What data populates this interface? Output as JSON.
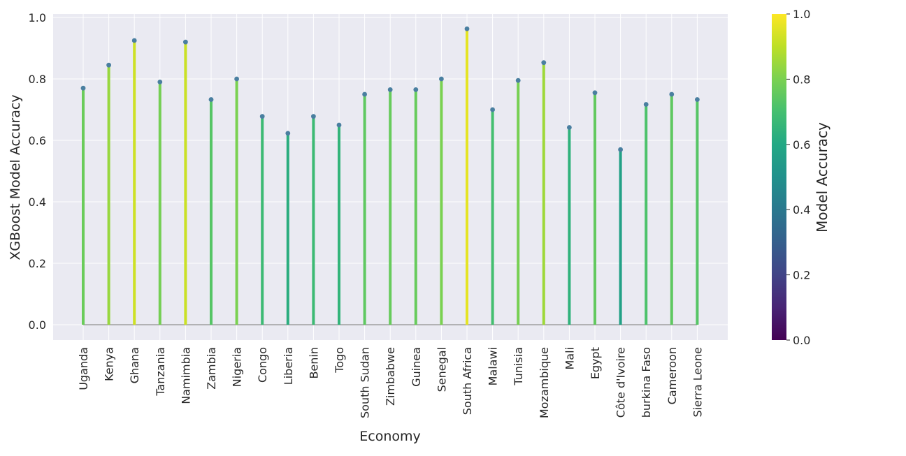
{
  "chart_data": {
    "type": "lollipop",
    "title": "",
    "xlabel": "Economy",
    "ylabel": "XGBoost Model Accuracy",
    "ylim": [
      -0.05,
      1.0
    ],
    "yticks": [
      "0.0",
      "0.2",
      "0.4",
      "0.6",
      "0.8",
      "1.0"
    ],
    "grid": true,
    "categories": [
      "Uganda",
      "Kenya",
      "Ghana",
      "Tanzania",
      "Namimbia",
      "Zambia",
      "Nigeria",
      "Congo",
      "Liberia",
      "Benin",
      "Togo",
      "South Sudan",
      "Zimbabwe",
      "Guinea",
      "Senegal",
      "South Africa",
      "Malawi",
      "Tunisia",
      "Mozambique",
      "Mali",
      "Egypt",
      "Côte d'Ivoire",
      "burkina Faso",
      "Cameroon",
      "Sierra Leone"
    ],
    "values": [
      0.77,
      0.845,
      0.925,
      0.79,
      0.92,
      0.733,
      0.8,
      0.678,
      0.623,
      0.678,
      0.65,
      0.75,
      0.765,
      0.765,
      0.8,
      0.963,
      0.7,
      0.795,
      0.853,
      0.642,
      0.755,
      0.57,
      0.717,
      0.75,
      0.733
    ],
    "colorbar": {
      "label": "Model Accuracy",
      "colormap": "viridis",
      "range": [
        0.0,
        1.0
      ],
      "ticks": [
        "0.0",
        "0.2",
        "0.4",
        "0.6",
        "0.8",
        "1.0"
      ]
    },
    "colors": {
      "plot_background": "#eaeaf2",
      "grid": "#ffffff",
      "baseline": "#a0a0a0",
      "marker": "#4a7fa0"
    }
  }
}
